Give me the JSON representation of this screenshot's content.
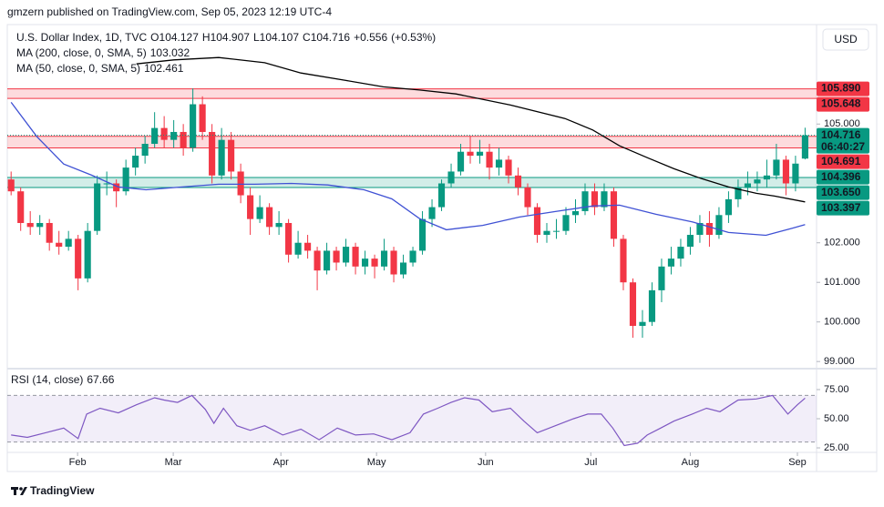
{
  "header": "gmzern published on TradingView.com, Sep 05, 2023 12:19 UTC-4",
  "currency": "USD",
  "footer": "TradingView",
  "chart_data": [
    {
      "type": "candlestick",
      "title": "U.S. Dollar Index, 1D, TVC",
      "ohlc_prefixes": [
        "O",
        "H",
        "L",
        "C"
      ],
      "change": {
        "value": 0.556,
        "label": "+0.556"
      },
      "change_pct": {
        "value": 0.53,
        "label": "(+0.53%)"
      },
      "countdown": "06:40:27",
      "up_color": "#089981",
      "down_color": "#f23645",
      "xlim": [
        -0.4,
        84.2
      ],
      "xticks": [
        {
          "value": 6.95,
          "label": "Feb"
        },
        {
          "value": 16.95,
          "label": "Mar"
        },
        {
          "value": 28.2,
          "label": "Apr"
        },
        {
          "value": 38.2,
          "label": "May"
        },
        {
          "value": 49.6,
          "label": "Jun"
        },
        {
          "value": 60.6,
          "label": "Jul"
        },
        {
          "value": 71,
          "label": "Aug"
        },
        {
          "value": 82.2,
          "label": "Sep"
        }
      ],
      "ylim": [
        98.82,
        107.49
      ],
      "yticks": [
        {
          "value": 105,
          "label": "105.000"
        },
        {
          "value": 102,
          "label": "102.000"
        },
        {
          "value": 101,
          "label": "101.000"
        },
        {
          "value": 100,
          "label": "100.000"
        },
        {
          "value": 99,
          "label": "99.000"
        }
      ],
      "grid": false,
      "candles": [
        [
          103.6,
          103.8,
          103.2,
          103.3
        ],
        [
          103.3,
          103.4,
          102.3,
          102.5
        ],
        [
          102.5,
          102.8,
          102.2,
          102.4
        ],
        [
          102.4,
          102.7,
          102.2,
          102.5
        ],
        [
          102.5,
          102.6,
          101.8,
          102.0
        ],
        [
          102.0,
          102.3,
          101.7,
          101.9
        ],
        [
          101.9,
          102.3,
          101.8,
          102.1
        ],
        [
          102.1,
          102.2,
          100.8,
          101.1
        ],
        [
          101.1,
          102.5,
          101.0,
          102.3
        ],
        [
          102.3,
          103.7,
          102.2,
          103.5
        ],
        [
          103.5,
          103.8,
          103.2,
          103.5
        ],
        [
          103.5,
          103.6,
          102.9,
          103.3
        ],
        [
          103.3,
          104.1,
          103.2,
          103.9
        ],
        [
          103.9,
          104.4,
          103.7,
          104.2
        ],
        [
          104.2,
          104.7,
          104.0,
          104.5
        ],
        [
          104.5,
          105.3,
          104.4,
          104.9
        ],
        [
          104.9,
          105.2,
          104.4,
          104.6
        ],
        [
          104.6,
          105.1,
          104.4,
          104.8
        ],
        [
          104.8,
          105.0,
          104.2,
          104.4
        ],
        [
          104.4,
          105.9,
          104.3,
          105.5
        ],
        [
          105.5,
          105.7,
          104.6,
          104.8
        ],
        [
          104.8,
          105.0,
          103.5,
          103.7
        ],
        [
          103.7,
          104.9,
          103.6,
          104.6
        ],
        [
          104.6,
          104.8,
          103.6,
          103.8
        ],
        [
          103.8,
          104.0,
          103.0,
          103.2
        ],
        [
          103.2,
          103.4,
          102.2,
          102.6
        ],
        [
          102.6,
          103.2,
          102.5,
          102.9
        ],
        [
          102.9,
          103.0,
          102.2,
          102.4
        ],
        [
          102.4,
          102.8,
          102.2,
          102.5
        ],
        [
          102.5,
          102.6,
          101.5,
          101.7
        ],
        [
          101.7,
          102.3,
          101.6,
          102.0
        ],
        [
          102.0,
          102.2,
          101.6,
          101.8
        ],
        [
          101.8,
          101.9,
          100.8,
          101.3
        ],
        [
          101.3,
          102.0,
          101.2,
          101.8
        ],
        [
          101.8,
          101.9,
          101.3,
          101.5
        ],
        [
          101.5,
          102.1,
          101.4,
          101.9
        ],
        [
          101.9,
          102.0,
          101.2,
          101.4
        ],
        [
          101.4,
          101.8,
          101.2,
          101.6
        ],
        [
          101.6,
          101.7,
          101.1,
          101.4
        ],
        [
          101.4,
          102.1,
          101.3,
          101.8
        ],
        [
          101.8,
          101.9,
          101.0,
          101.2
        ],
        [
          101.2,
          101.7,
          101.1,
          101.5
        ],
        [
          101.5,
          101.9,
          101.4,
          101.8
        ],
        [
          101.8,
          102.8,
          101.7,
          102.6
        ],
        [
          102.6,
          103.1,
          102.4,
          102.9
        ],
        [
          102.9,
          103.6,
          102.8,
          103.5
        ],
        [
          103.5,
          104.0,
          103.4,
          103.8
        ],
        [
          103.8,
          104.5,
          103.7,
          104.3
        ],
        [
          104.3,
          104.7,
          104.0,
          104.2
        ],
        [
          104.2,
          104.6,
          104.0,
          104.3
        ],
        [
          104.3,
          104.5,
          103.6,
          103.9
        ],
        [
          103.9,
          104.4,
          103.7,
          104.1
        ],
        [
          104.1,
          104.2,
          103.5,
          103.7
        ],
        [
          103.7,
          103.9,
          103.2,
          103.4
        ],
        [
          103.4,
          103.5,
          102.7,
          102.9
        ],
        [
          102.9,
          103.0,
          102.0,
          102.2
        ],
        [
          102.2,
          102.5,
          102.0,
          102.3
        ],
        [
          102.3,
          102.6,
          102.1,
          102.3
        ],
        [
          102.3,
          102.9,
          102.2,
          102.7
        ],
        [
          102.7,
          103.1,
          102.5,
          102.8
        ],
        [
          102.8,
          103.5,
          102.7,
          103.3
        ],
        [
          103.3,
          103.5,
          102.7,
          102.9
        ],
        [
          102.9,
          103.5,
          102.8,
          103.3
        ],
        [
          103.3,
          103.4,
          101.9,
          102.1
        ],
        [
          102.1,
          102.2,
          100.8,
          101.0
        ],
        [
          101.0,
          101.1,
          99.6,
          99.9
        ],
        [
          99.9,
          100.3,
          99.6,
          100.0
        ],
        [
          100.0,
          101.0,
          99.9,
          100.8
        ],
        [
          100.8,
          101.6,
          100.5,
          101.4
        ],
        [
          101.4,
          101.9,
          101.2,
          101.6
        ],
        [
          101.6,
          102.1,
          101.4,
          101.9
        ],
        [
          101.9,
          102.4,
          101.7,
          102.2
        ],
        [
          102.2,
          102.7,
          102.0,
          102.5
        ],
        [
          102.5,
          102.8,
          101.9,
          102.2
        ],
        [
          102.2,
          102.9,
          102.1,
          102.7
        ],
        [
          102.7,
          103.3,
          102.5,
          103.1
        ],
        [
          103.1,
          103.6,
          102.9,
          103.4
        ],
        [
          103.4,
          103.8,
          103.2,
          103.5
        ],
        [
          103.5,
          103.8,
          103.3,
          103.6
        ],
        [
          103.6,
          104.1,
          103.4,
          103.7
        ],
        [
          103.7,
          104.5,
          103.6,
          104.1
        ],
        [
          104.1,
          104.2,
          103.2,
          103.5
        ],
        [
          103.5,
          104.2,
          103.3,
          104.0
        ],
        [
          104.127,
          104.907,
          104.107,
          104.716
        ]
      ],
      "series": [
        {
          "name": "MA (200, close, 0, SMA, 5)",
          "color": "#000000",
          "x": [
            13.1,
            17,
            21.7,
            26.5,
            30.3,
            35,
            38.9,
            42.7,
            46.5,
            52.2,
            57.9,
            60.8,
            63.6,
            66.5,
            69.3,
            72.2,
            75,
            77.9,
            79.8,
            83
          ],
          "values": [
            106.52,
            106.62,
            106.68,
            106.55,
            106.29,
            106.1,
            105.94,
            105.86,
            105.76,
            105.48,
            105.14,
            104.85,
            104.45,
            104.15,
            103.87,
            103.62,
            103.41,
            103.25,
            103.18,
            103.032
          ]
        },
        {
          "name": "MA (50, close, 0, SMA, 5)",
          "color": "#3f51d4",
          "x": [
            0,
            2.7,
            5.5,
            8.4,
            11.2,
            14.1,
            17.9,
            21.7,
            25.5,
            29.3,
            33.1,
            36.9,
            39.8,
            42.7,
            45.5,
            49.3,
            53.1,
            56.9,
            60.8,
            63.6,
            67.4,
            71.2,
            75,
            78.9,
            81.7,
            83
          ],
          "values": [
            105.55,
            104.68,
            103.99,
            103.71,
            103.41,
            103.34,
            103.41,
            103.48,
            103.48,
            103.5,
            103.46,
            103.34,
            103.11,
            102.61,
            102.33,
            102.44,
            102.65,
            102.79,
            102.93,
            102.95,
            102.72,
            102.53,
            102.26,
            102.19,
            102.37,
            102.461
          ]
        }
      ],
      "zones": [
        {
          "color": "#f23645",
          "levels": [
            {
              "value": 105.89,
              "label": "105.890",
              "color": "#f23645"
            },
            {
              "value": 105.648,
              "label": "105.648",
              "color": "#f23645"
            }
          ]
        },
        {
          "color": "#f23645",
          "levels": [
            {
              "value": 104.691,
              "label": "104.691",
              "color": "#f23645"
            },
            {
              "value": 104.396,
              "label": "104.396",
              "color": "#089981"
            }
          ]
        },
        {
          "color": "#089981",
          "levels": [
            {
              "value": 103.65,
              "label": "103.650",
              "color": "#089981"
            },
            {
              "value": 103.397,
              "label": "103.397",
              "color": "#089981"
            }
          ]
        }
      ]
    },
    {
      "type": "line",
      "title": "RSI (14, close)",
      "xlim": [
        -0.4,
        84.2
      ],
      "ylim": [
        21.9,
        92.97
      ],
      "yticks": [
        {
          "value": 75,
          "label": "75.00"
        },
        {
          "value": 50,
          "label": "50.00"
        },
        {
          "value": 25,
          "label": "25.00"
        }
      ],
      "band": [
        30,
        70
      ],
      "band_color": "#7e57c2",
      "series": [
        {
          "name": "RSI (14, close)",
          "color": "#7e57c2",
          "x": [
            0,
            1.7,
            3.6,
            5.5,
            7,
            7.9,
            9.3,
            11.2,
            13.1,
            15,
            16,
            17.4,
            18.9,
            20.3,
            21.2,
            22.2,
            23.6,
            25,
            26.5,
            28.4,
            30.3,
            32.2,
            34.1,
            36,
            37.9,
            39.8,
            41.7,
            43.1,
            44.6,
            46,
            47.4,
            48.9,
            50.3,
            52.2,
            53.6,
            55,
            56.9,
            58.8,
            60.3,
            61.7,
            62.9,
            64.1,
            65.5,
            66.5,
            67.9,
            69.3,
            71.2,
            72.7,
            74.1,
            76,
            77.9,
            79.6,
            81.2,
            82.2,
            83
          ],
          "values": [
            36,
            34,
            38,
            42,
            33,
            54,
            59,
            55,
            62,
            68,
            66,
            64,
            70,
            58,
            46,
            59,
            44,
            40,
            44,
            36,
            41,
            32,
            42,
            36,
            37,
            32,
            38,
            54,
            59,
            64,
            68,
            66,
            56,
            59,
            48,
            38,
            44,
            50,
            54,
            54,
            42,
            27,
            29,
            36,
            42,
            48,
            54,
            59,
            56,
            66,
            67,
            70,
            54,
            62,
            67.66
          ]
        }
      ]
    }
  ]
}
